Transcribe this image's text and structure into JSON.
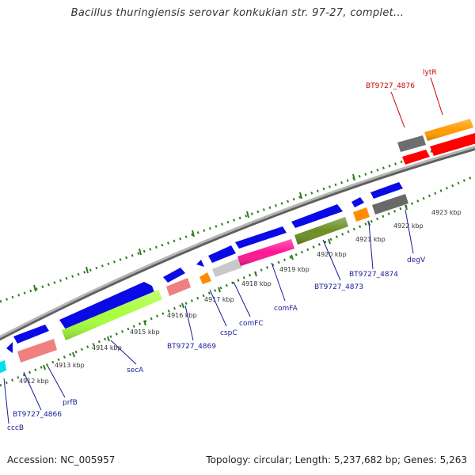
{
  "title": "Bacillus thuringiensis serovar konkukian str. 97-27, complet...",
  "footer": {
    "accession": "Accession: NC_005957",
    "summary": "Topology: circular; Length: 5,237,682 bp; Genes: 5,263"
  },
  "colors": {
    "backbone": "#8a8a8a",
    "ticks": "#2f7d1e",
    "blue": "#0a0ae6",
    "red_label": "#cc0000",
    "blue_label": "#1a1a99"
  },
  "scale_labels": [
    "4912 kbp",
    "4913 kbp",
    "4914 kbp",
    "4915 kbp",
    "4916 kbp",
    "4917 kbp",
    "4918 kbp",
    "4919 kbp",
    "4920 kbp",
    "4921 kbp",
    "4922 kbp",
    "4923 kbp"
  ],
  "gene_labels": {
    "cccB": "cccB",
    "BT9727_4866": "BT9727_4866",
    "prfB": "prfB",
    "secA": "secA",
    "BT9727_4869": "BT9727_4869",
    "cspC": "cspC",
    "comFC": "comFC",
    "comFA": "comFA",
    "BT9727_4873": "BT9727_4873",
    "BT9727_4874": "BT9727_4874",
    "degV": "degV",
    "BT9727_4876": "BT9727_4876",
    "lytR": "lytR"
  }
}
